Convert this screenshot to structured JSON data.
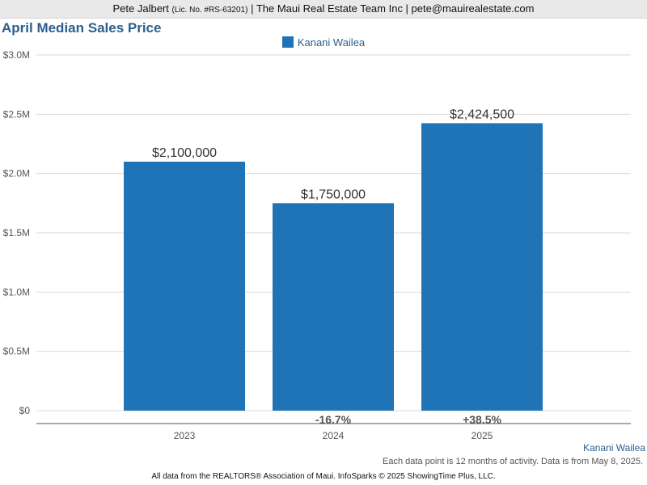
{
  "header": {
    "name": "Pete Jalbert",
    "license": "(Lic. No. #RS-63201)",
    "rest": "| The Maui Real Estate Team Inc | pete@mauirealestate.com"
  },
  "colors": {
    "bar": "#1f73b7",
    "title": "#2b5f8e"
  },
  "series_caption": "Kanani Wailea",
  "note": "Each data point is 12 months of activity. Data is from May 8, 2025.",
  "footer": "All data from the REALTORS® Association of Maui. InfoSparks © 2025 ShowingTime Plus, LLC.",
  "chart_data": {
    "type": "bar",
    "title": "April Median Sales Price",
    "xlabel": "",
    "ylabel": "",
    "categories": [
      "2023",
      "2024",
      "2025"
    ],
    "series": [
      {
        "name": "Kanani Wailea",
        "values": [
          2100000,
          1750000,
          2424500
        ],
        "value_labels": [
          "$2,100,000",
          "$1,750,000",
          "$2,424,500"
        ],
        "change_labels": [
          "",
          "-16.7%",
          "+38.5%"
        ]
      }
    ],
    "ylim": [
      0,
      3000000
    ],
    "yticks": [
      0,
      500000,
      1000000,
      1500000,
      2000000,
      2500000,
      3000000
    ],
    "ytick_labels": [
      "$0",
      "$0.5M",
      "$1.0M",
      "$1.5M",
      "$2.0M",
      "$2.5M",
      "$3.0M"
    ],
    "grid": true,
    "legend": "top-center"
  }
}
